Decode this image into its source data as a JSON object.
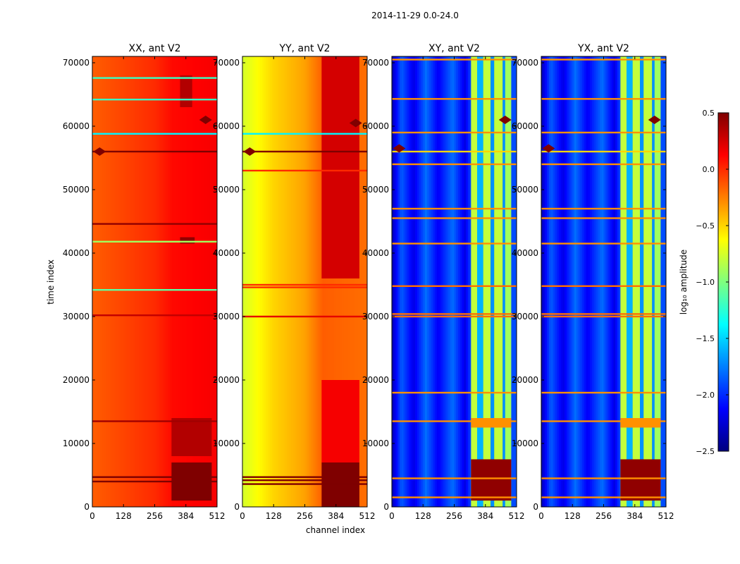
{
  "figure": {
    "suptitle": "2014-11-29 0.0-24.0",
    "xlabel": "channel index",
    "ylabel": "time index"
  },
  "colorbar": {
    "label": "log₁₀ amplitude",
    "ticks": [
      0.5,
      0.0,
      -0.5,
      -1.0,
      -1.5,
      -2.0,
      -2.5
    ],
    "tick_labels": [
      "0.5",
      "0.0",
      "−0.5",
      "−1.0",
      "−1.5",
      "−2.0",
      "−2.5"
    ],
    "range": [
      -2.5,
      0.5
    ],
    "colormap": "jet",
    "colors": [
      "#00007f",
      "#0000ff",
      "#007fff",
      "#00ffff",
      "#7fff7f",
      "#ffff00",
      "#ff7f00",
      "#ff0000",
      "#7f0000"
    ]
  },
  "chart_data": [
    {
      "type": "heatmap",
      "title": "XX, ant V2",
      "xlim": [
        0,
        512
      ],
      "ylim": [
        0,
        71000
      ],
      "x_ticks": [
        0,
        128,
        256,
        384,
        512
      ],
      "y_ticks": [
        0,
        10000,
        20000,
        30000,
        40000,
        50000,
        60000,
        70000
      ],
      "x_tick_labels": [
        "0",
        "128",
        "256",
        "384",
        "512"
      ],
      "y_tick_labels": [
        "0",
        "10000",
        "20000",
        "30000",
        "40000",
        "50000",
        "60000",
        "70000"
      ],
      "base_value": 0.0,
      "channel_gradient": [
        [
          0,
          -0.15
        ],
        [
          256,
          0.0
        ],
        [
          330,
          0.1
        ],
        [
          512,
          0.15
        ]
      ],
      "bright_blocks": [
        {
          "ch": [
            325,
            490
          ],
          "t": [
            1000,
            7000
          ],
          "value": 0.5
        },
        {
          "ch": [
            325,
            490
          ],
          "t": [
            8000,
            14000
          ],
          "value": 0.35
        },
        {
          "ch": [
            360,
            420
          ],
          "t": [
            41500,
            42500
          ],
          "value": 0.45
        },
        {
          "ch": [
            360,
            410
          ],
          "t": [
            63000,
            68000
          ],
          "value": 0.35
        }
      ],
      "flag_rows": [
        {
          "t": 4000,
          "value": 0.5
        },
        {
          "t": 4700,
          "value": 0.5
        },
        {
          "t": 13500,
          "value": 0.4
        },
        {
          "t": 30200,
          "value": 0.3
        },
        {
          "t": 44600,
          "value": 0.45
        },
        {
          "t": 56000,
          "value": 0.5
        },
        {
          "t": 58800,
          "value": -1.4
        },
        {
          "t": 64200,
          "value": -1.2
        },
        {
          "t": 67600,
          "value": -1.2
        },
        {
          "t": 34200,
          "value": -1.1
        },
        {
          "t": 41800,
          "value": -0.9
        }
      ],
      "artifacts": [
        {
          "t": 56000,
          "ch": 30,
          "value": 0.5
        },
        {
          "t": 61000,
          "ch": 465,
          "value": 0.5
        }
      ]
    },
    {
      "type": "heatmap",
      "title": "YY, ant V2",
      "xlim": [
        0,
        512
      ],
      "ylim": [
        0,
        71000
      ],
      "x_ticks": [
        0,
        128,
        256,
        384,
        512
      ],
      "y_ticks": [
        0,
        10000,
        20000,
        30000,
        40000,
        50000,
        60000,
        70000
      ],
      "x_tick_labels": [
        "0",
        "128",
        "256",
        "384",
        "512"
      ],
      "y_tick_labels": [
        "0",
        "10000",
        "20000",
        "30000",
        "40000",
        "50000",
        "60000",
        "70000"
      ],
      "base_value": -0.4,
      "channel_gradient": [
        [
          0,
          -0.75
        ],
        [
          128,
          -0.5
        ],
        [
          256,
          -0.35
        ],
        [
          330,
          -0.15
        ],
        [
          512,
          -0.2
        ]
      ],
      "bright_blocks": [
        {
          "ch": [
            325,
            480
          ],
          "t": [
            0,
            7000
          ],
          "value": 0.5
        },
        {
          "ch": [
            325,
            480
          ],
          "t": [
            7000,
            20000
          ],
          "value": 0.15
        },
        {
          "ch": [
            325,
            480
          ],
          "t": [
            36000,
            71000
          ],
          "value": 0.25
        }
      ],
      "flag_rows": [
        {
          "t": 3600,
          "value": 0.5
        },
        {
          "t": 4200,
          "value": 0.5
        },
        {
          "t": 4700,
          "value": 0.5
        },
        {
          "t": 30000,
          "value": 0.2
        },
        {
          "t": 34600,
          "value": 0.0
        },
        {
          "t": 35000,
          "value": 0.0
        },
        {
          "t": 56000,
          "value": 0.5
        },
        {
          "t": 58800,
          "value": -1.4
        },
        {
          "t": 53000,
          "value": 0.0
        }
      ],
      "artifacts": [
        {
          "t": 56000,
          "ch": 30,
          "value": 0.5
        },
        {
          "t": 60500,
          "ch": 465,
          "value": 0.5
        }
      ]
    },
    {
      "type": "heatmap",
      "title": "XY, ant V2",
      "xlim": [
        0,
        512
      ],
      "ylim": [
        0,
        71000
      ],
      "x_ticks": [
        0,
        128,
        256,
        384,
        512
      ],
      "y_ticks": [
        0,
        10000,
        20000,
        30000,
        40000,
        50000,
        60000,
        70000
      ],
      "x_tick_labels": [
        "0",
        "128",
        "256",
        "384",
        "512"
      ],
      "y_tick_labels": [
        "0",
        "10000",
        "20000",
        "30000",
        "40000",
        "50000",
        "60000",
        "70000"
      ],
      "base_value": -2.0,
      "channel_gradient": [
        [
          0,
          -2.35
        ],
        [
          40,
          -1.85
        ],
        [
          90,
          -2.2
        ],
        [
          140,
          -1.8
        ],
        [
          190,
          -2.15
        ],
        [
          250,
          -1.8
        ],
        [
          300,
          -2.2
        ],
        [
          325,
          -1.9
        ]
      ],
      "bright_blocks": [
        {
          "ch": [
            325,
            350
          ],
          "t": [
            0,
            71000
          ],
          "value": -0.8
        },
        {
          "ch": [
            350,
            375
          ],
          "t": [
            0,
            71000
          ],
          "value": -1.6
        },
        {
          "ch": [
            375,
            405
          ],
          "t": [
            0,
            71000
          ],
          "value": -0.8
        },
        {
          "ch": [
            405,
            420
          ],
          "t": [
            0,
            71000
          ],
          "value": -1.7
        },
        {
          "ch": [
            420,
            455
          ],
          "t": [
            0,
            71000
          ],
          "value": -0.8
        },
        {
          "ch": [
            455,
            465
          ],
          "t": [
            0,
            71000
          ],
          "value": -1.7
        },
        {
          "ch": [
            465,
            490
          ],
          "t": [
            0,
            71000
          ],
          "value": -0.9
        },
        {
          "ch": [
            325,
            490
          ],
          "t": [
            1000,
            7500
          ],
          "value": 0.45
        },
        {
          "ch": [
            325,
            490
          ],
          "t": [
            12500,
            14000
          ],
          "value": -0.3
        }
      ],
      "flag_rows": [
        {
          "t": 1500,
          "value": -0.3
        },
        {
          "t": 4500,
          "value": -0.3
        },
        {
          "t": 13500,
          "value": -0.3
        },
        {
          "t": 18000,
          "value": -0.3
        },
        {
          "t": 30000,
          "value": -0.2
        },
        {
          "t": 30400,
          "value": -0.2
        },
        {
          "t": 34800,
          "value": -0.2
        },
        {
          "t": 41500,
          "value": -0.3
        },
        {
          "t": 45500,
          "value": -0.3
        },
        {
          "t": 47000,
          "value": -0.3
        },
        {
          "t": 54000,
          "value": -0.3
        },
        {
          "t": 56000,
          "value": -0.5
        },
        {
          "t": 59000,
          "value": -0.3
        },
        {
          "t": 64300,
          "value": -0.3
        },
        {
          "t": 70500,
          "value": -0.3
        }
      ],
      "artifacts": [
        {
          "t": 56500,
          "ch": 30,
          "value": 0.5
        },
        {
          "t": 61000,
          "ch": 465,
          "value": 0.5
        }
      ]
    },
    {
      "type": "heatmap",
      "title": "YX, ant V2",
      "xlim": [
        0,
        512
      ],
      "ylim": [
        0,
        71000
      ],
      "x_ticks": [
        0,
        128,
        256,
        384,
        512
      ],
      "y_ticks": [
        0,
        10000,
        20000,
        30000,
        40000,
        50000,
        60000,
        70000
      ],
      "x_tick_labels": [
        "0",
        "128",
        "256",
        "384",
        "512"
      ],
      "y_tick_labels": [
        "0",
        "10000",
        "20000",
        "30000",
        "40000",
        "50000",
        "60000",
        "70000"
      ],
      "base_value": -2.0,
      "channel_gradient": [
        [
          0,
          -2.35
        ],
        [
          40,
          -1.85
        ],
        [
          90,
          -2.2
        ],
        [
          140,
          -1.8
        ],
        [
          190,
          -2.15
        ],
        [
          250,
          -1.8
        ],
        [
          300,
          -2.2
        ],
        [
          325,
          -1.9
        ]
      ],
      "bright_blocks": [
        {
          "ch": [
            325,
            350
          ],
          "t": [
            0,
            71000
          ],
          "value": -0.8
        },
        {
          "ch": [
            350,
            375
          ],
          "t": [
            0,
            71000
          ],
          "value": -1.6
        },
        {
          "ch": [
            375,
            405
          ],
          "t": [
            0,
            71000
          ],
          "value": -0.8
        },
        {
          "ch": [
            405,
            420
          ],
          "t": [
            0,
            71000
          ],
          "value": -1.7
        },
        {
          "ch": [
            420,
            455
          ],
          "t": [
            0,
            71000
          ],
          "value": -0.8
        },
        {
          "ch": [
            455,
            465
          ],
          "t": [
            0,
            71000
          ],
          "value": -1.7
        },
        {
          "ch": [
            465,
            490
          ],
          "t": [
            0,
            71000
          ],
          "value": -0.9
        },
        {
          "ch": [
            325,
            490
          ],
          "t": [
            1000,
            7500
          ],
          "value": 0.45
        },
        {
          "ch": [
            325,
            490
          ],
          "t": [
            12500,
            14000
          ],
          "value": -0.3
        }
      ],
      "flag_rows": [
        {
          "t": 1500,
          "value": -0.3
        },
        {
          "t": 4500,
          "value": -0.3
        },
        {
          "t": 13500,
          "value": -0.3
        },
        {
          "t": 18000,
          "value": -0.3
        },
        {
          "t": 30000,
          "value": -0.2
        },
        {
          "t": 30400,
          "value": -0.2
        },
        {
          "t": 34800,
          "value": -0.2
        },
        {
          "t": 41500,
          "value": -0.3
        },
        {
          "t": 45500,
          "value": -0.3
        },
        {
          "t": 47000,
          "value": -0.3
        },
        {
          "t": 54000,
          "value": -0.3
        },
        {
          "t": 56000,
          "value": -0.5
        },
        {
          "t": 59000,
          "value": -0.3
        },
        {
          "t": 64300,
          "value": -0.3
        },
        {
          "t": 70500,
          "value": -0.3
        }
      ],
      "artifacts": [
        {
          "t": 56500,
          "ch": 30,
          "value": 0.5
        },
        {
          "t": 61000,
          "ch": 465,
          "value": 0.5
        }
      ]
    }
  ]
}
